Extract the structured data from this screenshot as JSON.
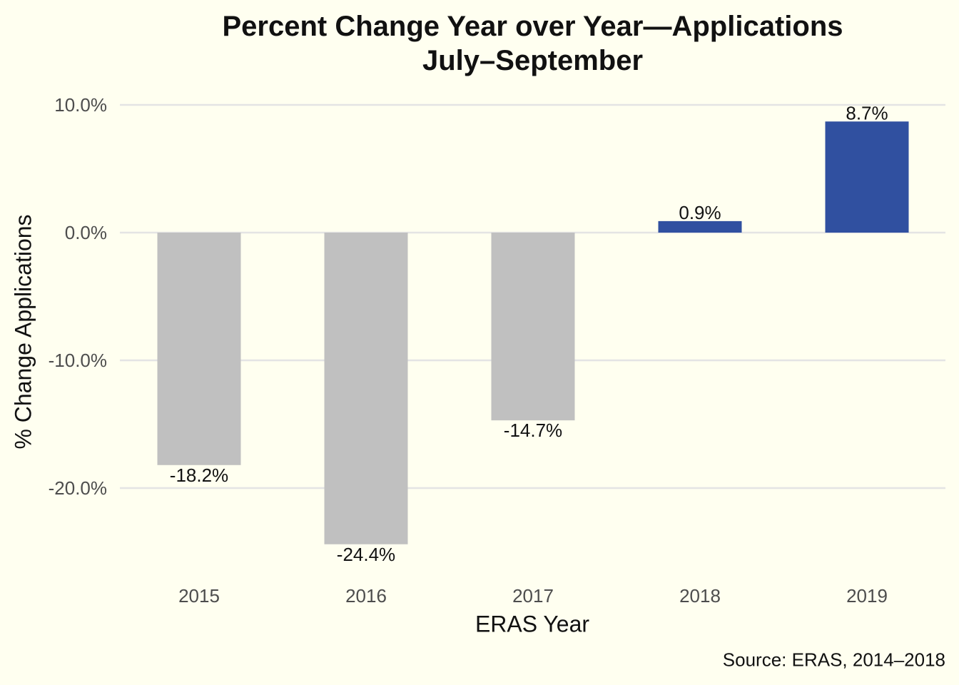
{
  "title": {
    "line1": "Percent Change Year over Year—Applications",
    "line2": "July–September"
  },
  "source": "Source: ERAS, 2014–2018",
  "colors": {
    "background": "#FFFFF0",
    "grid": "#E4E4E4",
    "negative_bar": "#C0C0C0",
    "positive_bar": "#3050A0",
    "tick_text": "#4D4D4D",
    "label_text": "#111111"
  },
  "chart_data": {
    "type": "bar",
    "title": "Percent Change Year over Year—Applications July–September",
    "xlabel": "ERAS Year",
    "ylabel": "% Change Applications",
    "categories": [
      "2015",
      "2016",
      "2017",
      "2018",
      "2019"
    ],
    "values": [
      -18.2,
      -24.4,
      -14.7,
      0.9,
      8.7
    ],
    "data_labels": [
      "-18.2%",
      "-24.4%",
      "-14.7%",
      "0.9%",
      "8.7%"
    ],
    "ylim": [
      -25.5,
      10
    ],
    "yticks": [
      10,
      0,
      -10,
      -20
    ],
    "ytick_labels": [
      "10.0%",
      "0.0%",
      "-10.0%",
      "-20.0%"
    ],
    "grid": true,
    "legend": "none"
  }
}
